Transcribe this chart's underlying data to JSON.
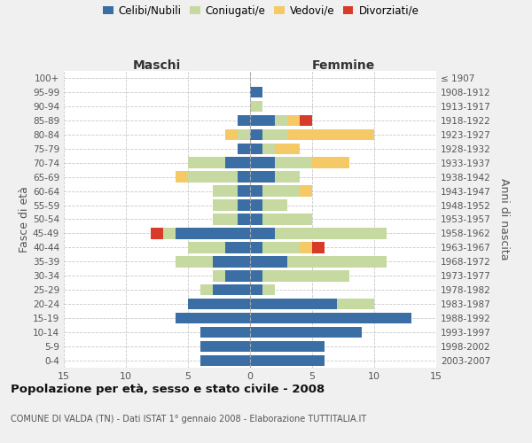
{
  "age_groups": [
    "0-4",
    "5-9",
    "10-14",
    "15-19",
    "20-24",
    "25-29",
    "30-34",
    "35-39",
    "40-44",
    "45-49",
    "50-54",
    "55-59",
    "60-64",
    "65-69",
    "70-74",
    "75-79",
    "80-84",
    "85-89",
    "90-94",
    "95-99",
    "100+"
  ],
  "birth_years": [
    "2003-2007",
    "1998-2002",
    "1993-1997",
    "1988-1992",
    "1983-1987",
    "1978-1982",
    "1973-1977",
    "1968-1972",
    "1963-1967",
    "1958-1962",
    "1953-1957",
    "1948-1952",
    "1943-1947",
    "1938-1942",
    "1933-1937",
    "1928-1932",
    "1923-1927",
    "1918-1922",
    "1913-1917",
    "1908-1912",
    "≤ 1907"
  ],
  "maschi": {
    "celibe": [
      4,
      4,
      4,
      6,
      5,
      3,
      2,
      3,
      2,
      6,
      1,
      1,
      1,
      1,
      2,
      1,
      0,
      1,
      0,
      0,
      0
    ],
    "coniugato": [
      0,
      0,
      0,
      0,
      0,
      1,
      1,
      3,
      3,
      1,
      2,
      2,
      2,
      4,
      3,
      0,
      1,
      0,
      0,
      0,
      0
    ],
    "vedovo": [
      0,
      0,
      0,
      0,
      0,
      0,
      0,
      0,
      0,
      0,
      0,
      0,
      0,
      1,
      0,
      0,
      1,
      0,
      0,
      0,
      0
    ],
    "divorziato": [
      0,
      0,
      0,
      0,
      0,
      0,
      0,
      0,
      0,
      1,
      0,
      0,
      0,
      0,
      0,
      0,
      0,
      0,
      0,
      0,
      0
    ]
  },
  "femmine": {
    "nubile": [
      6,
      6,
      9,
      13,
      7,
      1,
      1,
      3,
      1,
      2,
      1,
      1,
      1,
      2,
      2,
      1,
      1,
      2,
      0,
      1,
      0
    ],
    "coniugata": [
      0,
      0,
      0,
      0,
      3,
      1,
      7,
      8,
      3,
      9,
      4,
      2,
      3,
      2,
      3,
      1,
      2,
      1,
      1,
      0,
      0
    ],
    "vedova": [
      0,
      0,
      0,
      0,
      0,
      0,
      0,
      0,
      1,
      0,
      0,
      0,
      1,
      0,
      3,
      2,
      7,
      1,
      0,
      0,
      0
    ],
    "divorziata": [
      0,
      0,
      0,
      0,
      0,
      0,
      0,
      0,
      1,
      0,
      0,
      0,
      0,
      0,
      0,
      0,
      0,
      1,
      0,
      0,
      0
    ]
  },
  "colors": {
    "celibe": "#3a6ea5",
    "coniugato": "#c5d9a0",
    "vedovo": "#f5c965",
    "divorziato": "#d93b2b"
  },
  "xlim": 15,
  "title": "Popolazione per età, sesso e stato civile - 2008",
  "subtitle": "COMUNE DI VALDA (TN) - Dati ISTAT 1° gennaio 2008 - Elaborazione TUTTITALIA.IT",
  "ylabel_left": "Fasce di età",
  "ylabel_right": "Anni di nascita",
  "xlabel_maschi": "Maschi",
  "xlabel_femmine": "Femmine",
  "legend_labels": [
    "Celibi/Nubili",
    "Coniugati/e",
    "Vedovi/e",
    "Divorziati/e"
  ],
  "bg_color": "#f0f0f0",
  "plot_bg": "#ffffff"
}
